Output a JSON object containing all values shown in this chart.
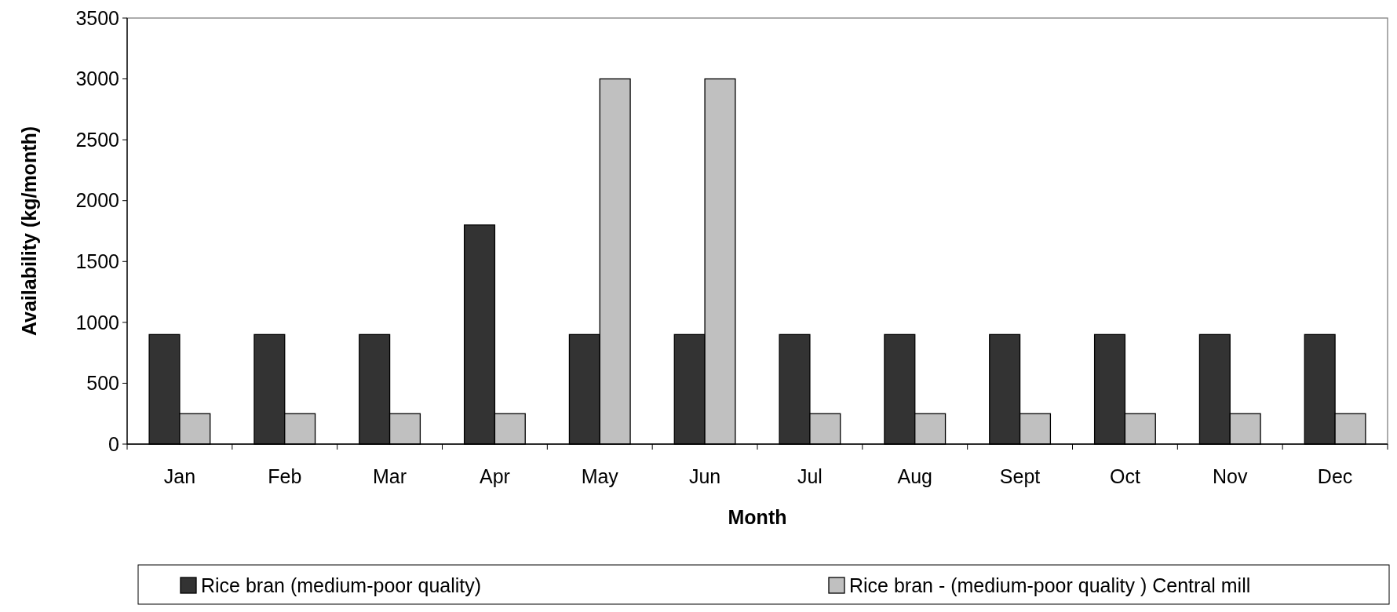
{
  "chart_data": {
    "type": "bar",
    "xlabel": "Month",
    "ylabel": "Availability (kg/month)",
    "categories": [
      "Jan",
      "Feb",
      "Mar",
      "Apr",
      "May",
      "Jun",
      "Jul",
      "Aug",
      "Sept",
      "Oct",
      "Nov",
      "Dec"
    ],
    "series": [
      {
        "name": "Rice bran (medium-poor quality)",
        "color": "#333333",
        "values": [
          900,
          900,
          900,
          1800,
          900,
          900,
          900,
          900,
          900,
          900,
          900,
          900
        ]
      },
      {
        "name": "Rice bran - (medium-poor quality ) Central mill",
        "color": "#c0c0c0",
        "values": [
          250,
          250,
          250,
          250,
          3000,
          3000,
          250,
          250,
          250,
          250,
          250,
          250
        ]
      }
    ],
    "ylim": [
      0,
      3500
    ],
    "yticks": [
      0,
      500,
      1000,
      1500,
      2000,
      2500,
      3000,
      3500
    ],
    "grid": false,
    "legend": "bottom"
  }
}
